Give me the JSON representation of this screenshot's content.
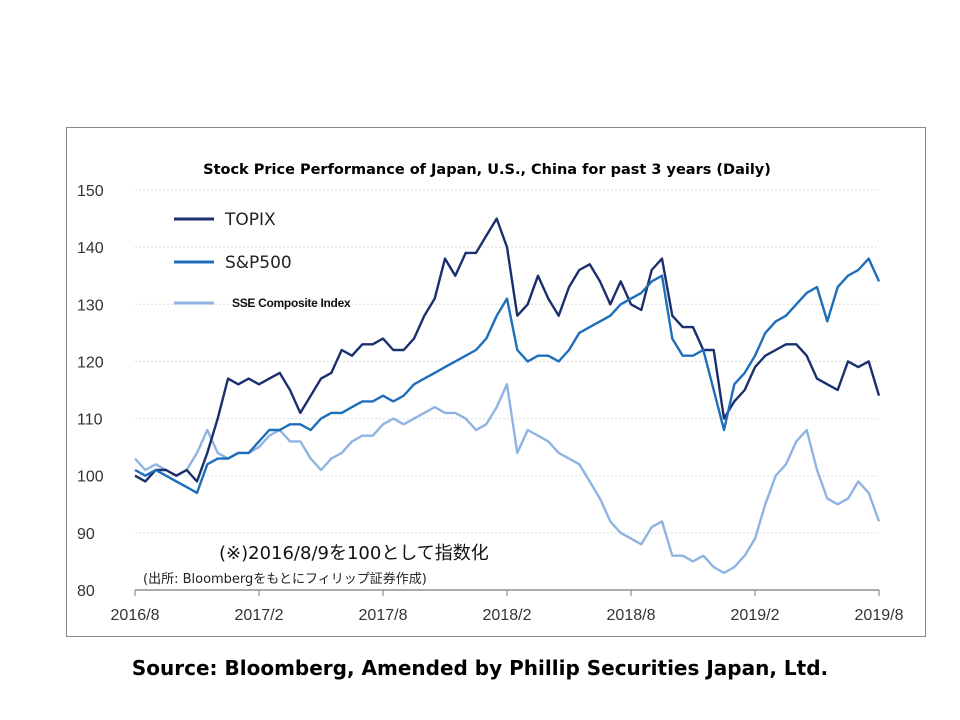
{
  "chart_data": {
    "type": "line",
    "title": "Stock Price Performance of Japan, U.S., China for past 3 years (Daily)",
    "ylim": [
      80,
      150
    ],
    "yticks": [
      "150",
      "140",
      "130",
      "120",
      "110",
      "100",
      "90",
      "80"
    ],
    "xlim": [
      0,
      36
    ],
    "xticks": [
      {
        "label": "2016/8",
        "pos": 0
      },
      {
        "label": "2017/2",
        "pos": 6
      },
      {
        "label": "2017/8",
        "pos": 12
      },
      {
        "label": "2018/2",
        "pos": 18
      },
      {
        "label": "2018/8",
        "pos": 24
      },
      {
        "label": "2019/2",
        "pos": 30
      },
      {
        "label": "2019/8",
        "pos": 36
      }
    ],
    "grid": true,
    "legend_position": "top-left",
    "note": "(※)2016/8/9を100として指数化",
    "note_source": "(出所: Bloombergをもとにフィリップ証券作成)",
    "series": [
      {
        "name": "TOPIX",
        "color": "#1b2f6e",
        "points": [
          [
            0,
            100
          ],
          [
            0.5,
            99
          ],
          [
            1,
            101
          ],
          [
            1.5,
            101
          ],
          [
            2,
            100
          ],
          [
            2.5,
            101
          ],
          [
            3,
            99
          ],
          [
            3.5,
            104
          ],
          [
            4,
            110
          ],
          [
            4.5,
            117
          ],
          [
            5,
            116
          ],
          [
            5.5,
            117
          ],
          [
            6,
            116
          ],
          [
            6.5,
            117
          ],
          [
            7,
            118
          ],
          [
            7.5,
            115
          ],
          [
            8,
            111
          ],
          [
            8.5,
            114
          ],
          [
            9,
            117
          ],
          [
            9.5,
            118
          ],
          [
            10,
            122
          ],
          [
            10.5,
            121
          ],
          [
            11,
            123
          ],
          [
            11.5,
            123
          ],
          [
            12,
            124
          ],
          [
            12.5,
            122
          ],
          [
            13,
            122
          ],
          [
            13.5,
            124
          ],
          [
            14,
            128
          ],
          [
            14.5,
            131
          ],
          [
            15,
            138
          ],
          [
            15.5,
            135
          ],
          [
            16,
            139
          ],
          [
            16.5,
            139
          ],
          [
            17,
            142
          ],
          [
            17.5,
            145
          ],
          [
            18,
            140
          ],
          [
            18.5,
            128
          ],
          [
            19,
            130
          ],
          [
            19.5,
            135
          ],
          [
            20,
            131
          ],
          [
            20.5,
            128
          ],
          [
            21,
            133
          ],
          [
            21.5,
            136
          ],
          [
            22,
            137
          ],
          [
            22.5,
            134
          ],
          [
            23,
            130
          ],
          [
            23.5,
            134
          ],
          [
            24,
            130
          ],
          [
            24.5,
            129
          ],
          [
            25,
            136
          ],
          [
            25.5,
            138
          ],
          [
            26,
            128
          ],
          [
            26.5,
            126
          ],
          [
            27,
            126
          ],
          [
            27.5,
            122
          ],
          [
            28,
            122
          ],
          [
            28.5,
            110
          ],
          [
            29,
            113
          ],
          [
            29.5,
            115
          ],
          [
            30,
            119
          ],
          [
            30.5,
            121
          ],
          [
            31,
            122
          ],
          [
            31.5,
            123
          ],
          [
            32,
            123
          ],
          [
            32.5,
            121
          ],
          [
            33,
            117
          ],
          [
            33.5,
            116
          ],
          [
            34,
            115
          ],
          [
            34.5,
            120
          ],
          [
            35,
            119
          ],
          [
            35.5,
            120
          ],
          [
            36,
            114
          ]
        ]
      },
      {
        "name": "S&P500",
        "color": "#1e6ebc",
        "points": [
          [
            0,
            101
          ],
          [
            0.5,
            100
          ],
          [
            1,
            101
          ],
          [
            1.5,
            100
          ],
          [
            2,
            99
          ],
          [
            2.5,
            98
          ],
          [
            3,
            97
          ],
          [
            3.5,
            102
          ],
          [
            4,
            103
          ],
          [
            4.5,
            103
          ],
          [
            5,
            104
          ],
          [
            5.5,
            104
          ],
          [
            6,
            106
          ],
          [
            6.5,
            108
          ],
          [
            7,
            108
          ],
          [
            7.5,
            109
          ],
          [
            8,
            109
          ],
          [
            8.5,
            108
          ],
          [
            9,
            110
          ],
          [
            9.5,
            111
          ],
          [
            10,
            111
          ],
          [
            10.5,
            112
          ],
          [
            11,
            113
          ],
          [
            11.5,
            113
          ],
          [
            12,
            114
          ],
          [
            12.5,
            113
          ],
          [
            13,
            114
          ],
          [
            13.5,
            116
          ],
          [
            14,
            117
          ],
          [
            14.5,
            118
          ],
          [
            15,
            119
          ],
          [
            15.5,
            120
          ],
          [
            16,
            121
          ],
          [
            16.5,
            122
          ],
          [
            17,
            124
          ],
          [
            17.5,
            128
          ],
          [
            18,
            131
          ],
          [
            18.5,
            122
          ],
          [
            19,
            120
          ],
          [
            19.5,
            121
          ],
          [
            20,
            121
          ],
          [
            20.5,
            120
          ],
          [
            21,
            122
          ],
          [
            21.5,
            125
          ],
          [
            22,
            126
          ],
          [
            22.5,
            127
          ],
          [
            23,
            128
          ],
          [
            23.5,
            130
          ],
          [
            24,
            131
          ],
          [
            24.5,
            132
          ],
          [
            25,
            134
          ],
          [
            25.5,
            135
          ],
          [
            26,
            124
          ],
          [
            26.5,
            121
          ],
          [
            27,
            121
          ],
          [
            27.5,
            122
          ],
          [
            28,
            115
          ],
          [
            28.5,
            108
          ],
          [
            29,
            116
          ],
          [
            29.5,
            118
          ],
          [
            30,
            121
          ],
          [
            30.5,
            125
          ],
          [
            31,
            127
          ],
          [
            31.5,
            128
          ],
          [
            32,
            130
          ],
          [
            32.5,
            132
          ],
          [
            33,
            133
          ],
          [
            33.5,
            127
          ],
          [
            34,
            133
          ],
          [
            34.5,
            135
          ],
          [
            35,
            136
          ],
          [
            35.5,
            138
          ],
          [
            36,
            134
          ]
        ]
      },
      {
        "name": "SSE Composite Index",
        "color": "#8fb4e2",
        "points": [
          [
            0,
            103
          ],
          [
            0.5,
            101
          ],
          [
            1,
            102
          ],
          [
            1.5,
            101
          ],
          [
            2,
            100
          ],
          [
            2.5,
            101
          ],
          [
            3,
            104
          ],
          [
            3.5,
            108
          ],
          [
            4,
            104
          ],
          [
            4.5,
            103
          ],
          [
            5,
            104
          ],
          [
            5.5,
            104
          ],
          [
            6,
            105
          ],
          [
            6.5,
            107
          ],
          [
            7,
            108
          ],
          [
            7.5,
            106
          ],
          [
            8,
            106
          ],
          [
            8.5,
            103
          ],
          [
            9,
            101
          ],
          [
            9.5,
            103
          ],
          [
            10,
            104
          ],
          [
            10.5,
            106
          ],
          [
            11,
            107
          ],
          [
            11.5,
            107
          ],
          [
            12,
            109
          ],
          [
            12.5,
            110
          ],
          [
            13,
            109
          ],
          [
            13.5,
            110
          ],
          [
            14,
            111
          ],
          [
            14.5,
            112
          ],
          [
            15,
            111
          ],
          [
            15.5,
            111
          ],
          [
            16,
            110
          ],
          [
            16.5,
            108
          ],
          [
            17,
            109
          ],
          [
            17.5,
            112
          ],
          [
            18,
            116
          ],
          [
            18.5,
            104
          ],
          [
            19,
            108
          ],
          [
            19.5,
            107
          ],
          [
            20,
            106
          ],
          [
            20.5,
            104
          ],
          [
            21,
            103
          ],
          [
            21.5,
            102
          ],
          [
            22,
            99
          ],
          [
            22.5,
            96
          ],
          [
            23,
            92
          ],
          [
            23.5,
            90
          ],
          [
            24,
            89
          ],
          [
            24.5,
            88
          ],
          [
            25,
            91
          ],
          [
            25.5,
            92
          ],
          [
            26,
            86
          ],
          [
            26.5,
            86
          ],
          [
            27,
            85
          ],
          [
            27.5,
            86
          ],
          [
            28,
            84
          ],
          [
            28.5,
            83
          ],
          [
            29,
            84
          ],
          [
            29.5,
            86
          ],
          [
            30,
            89
          ],
          [
            30.5,
            95
          ],
          [
            31,
            100
          ],
          [
            31.5,
            102
          ],
          [
            32,
            106
          ],
          [
            32.5,
            108
          ],
          [
            33,
            101
          ],
          [
            33.5,
            96
          ],
          [
            34,
            95
          ],
          [
            34.5,
            96
          ],
          [
            35,
            99
          ],
          [
            35.5,
            97
          ],
          [
            36,
            92
          ]
        ]
      }
    ]
  },
  "source": "Source: Bloomberg, Amended by Phillip Securities Japan, Ltd."
}
